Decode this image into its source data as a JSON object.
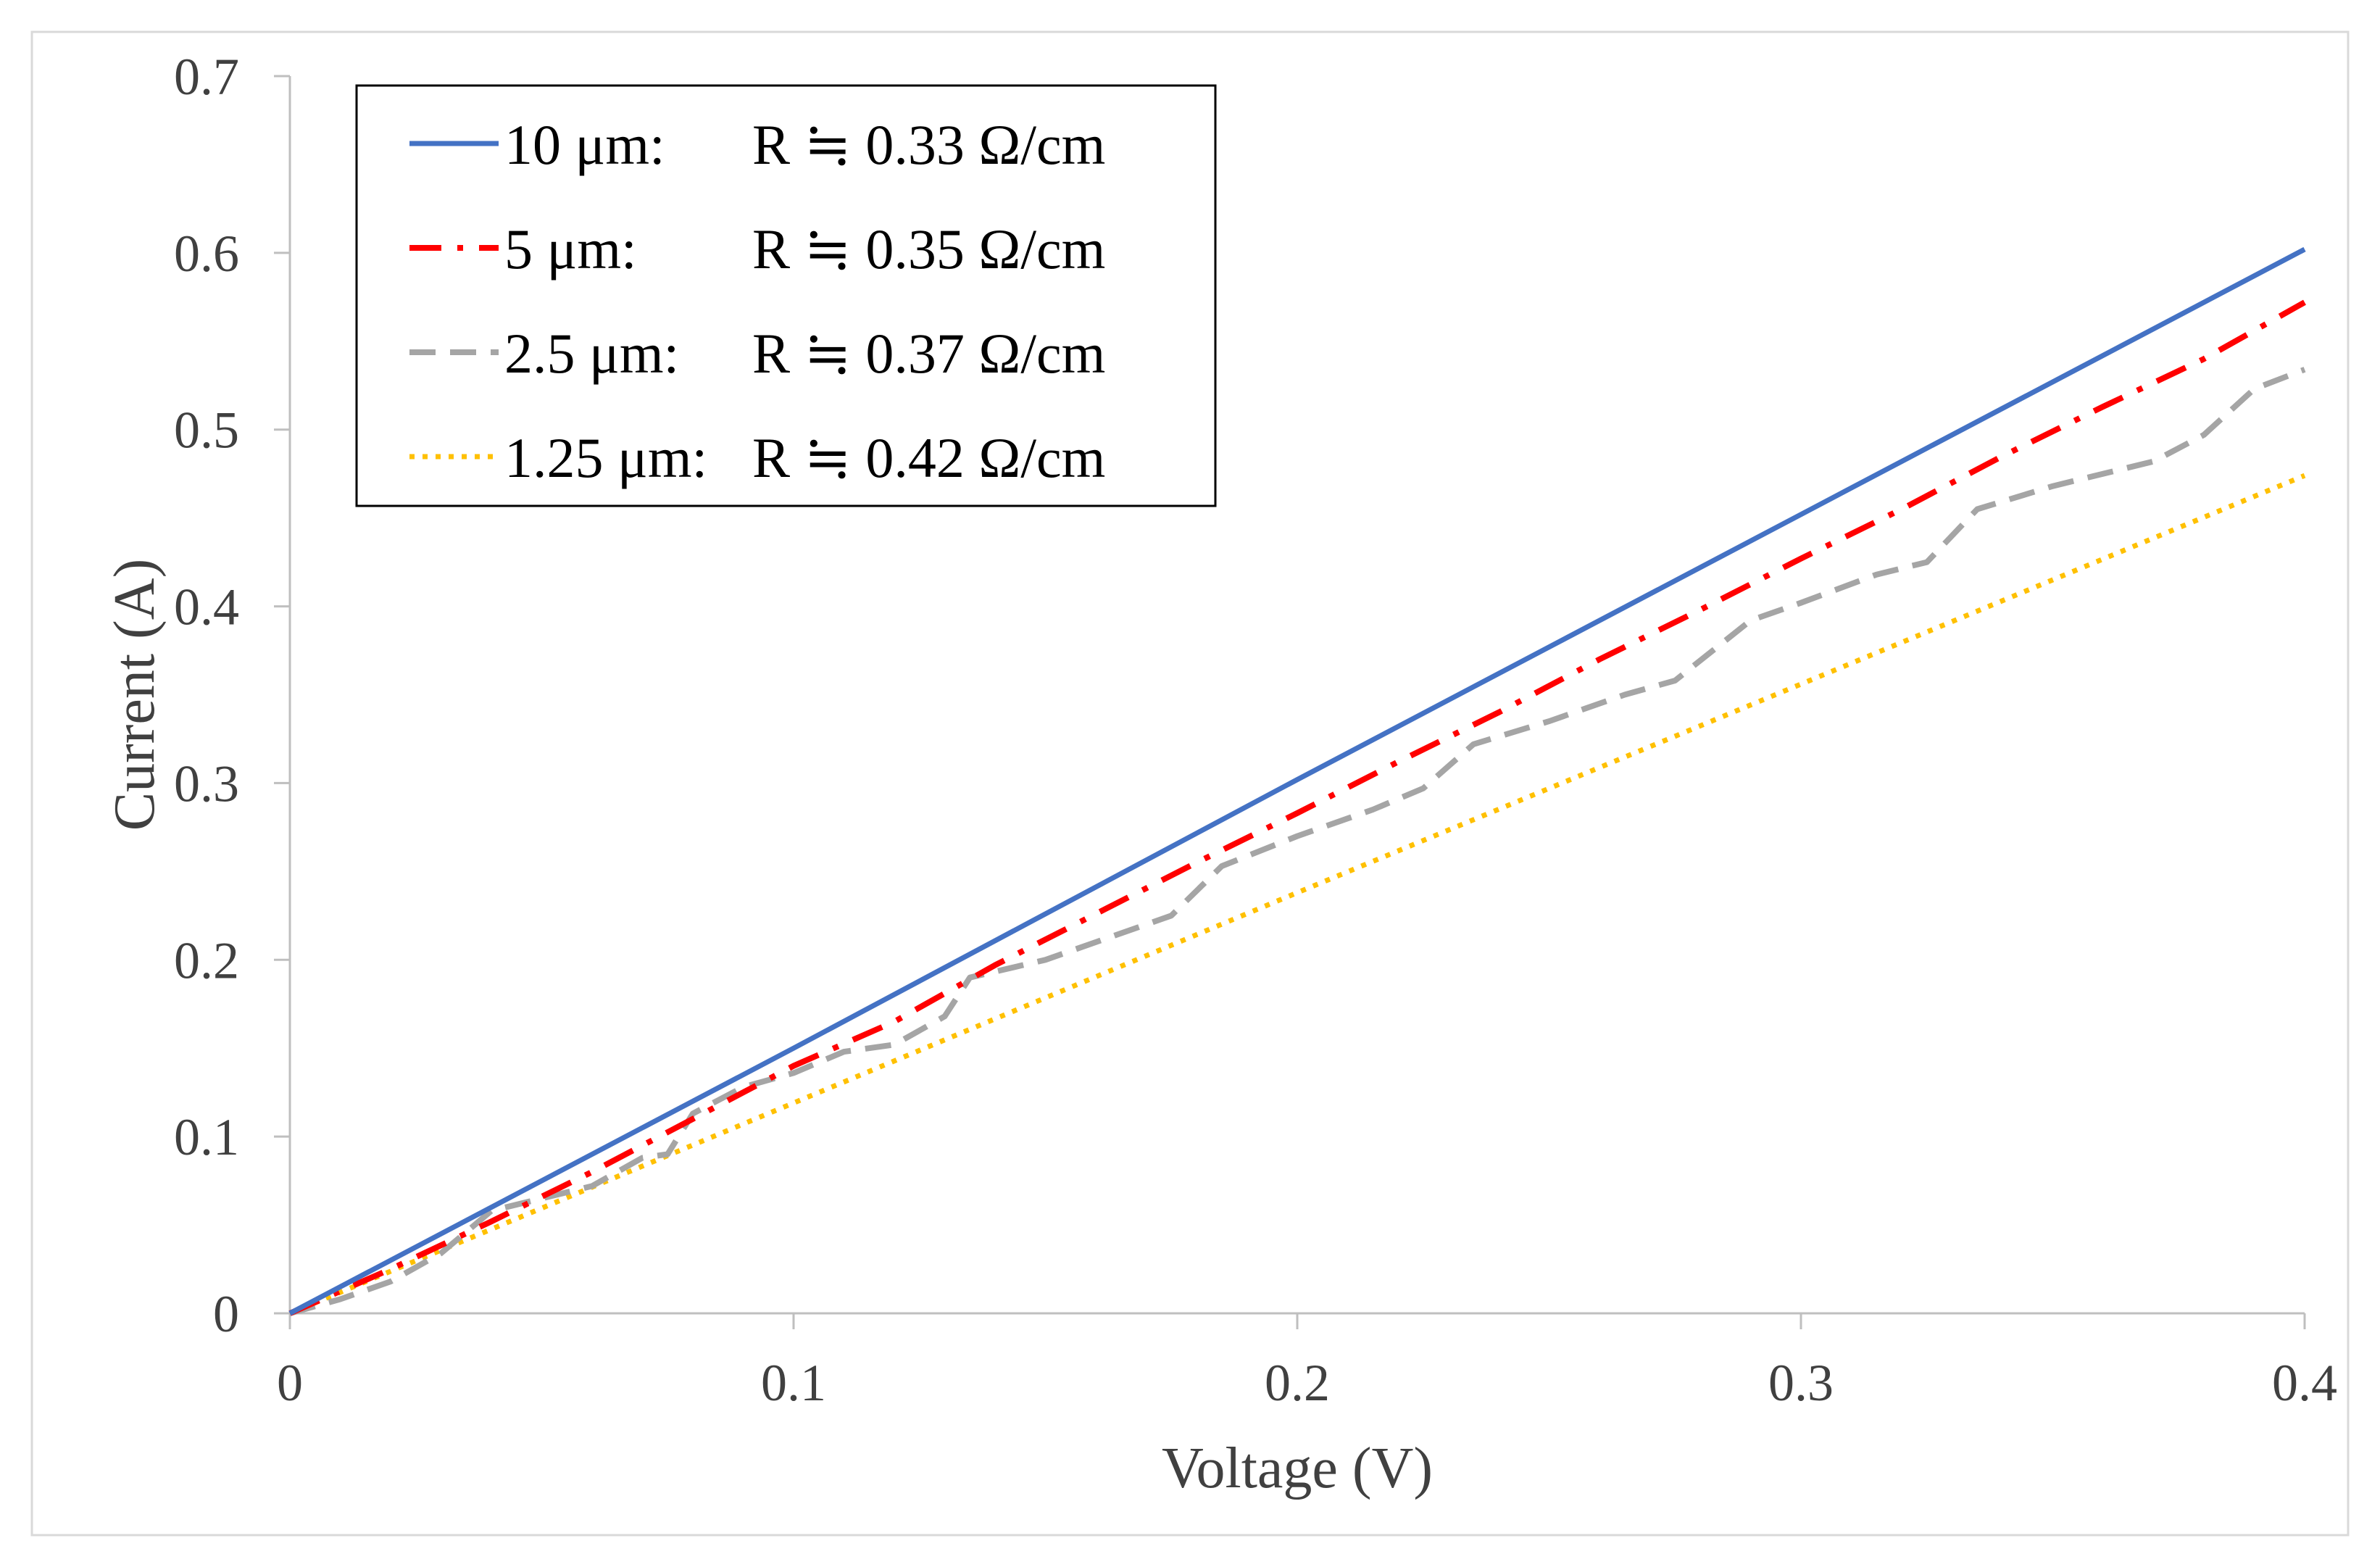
{
  "chart_data": {
    "type": "line",
    "title": "",
    "xlabel": "Voltage (V)",
    "ylabel": "Current (A)",
    "xlim": [
      0,
      0.4
    ],
    "ylim": [
      0,
      0.7
    ],
    "x_ticks": [
      "0",
      "0.1",
      "0.2",
      "0.3",
      "0.4"
    ],
    "y_ticks": [
      "0",
      "0.1",
      "0.2",
      "0.3",
      "0.4",
      "0.5",
      "0.6",
      "0.7"
    ],
    "grid": false,
    "legend_position": "top-left",
    "series": [
      {
        "name": "10 μm:",
        "resistance": "R ≒ 0.33 Ω/cm",
        "color": "#4472C4",
        "style": "solid",
        "points": [
          [
            0,
            0
          ],
          [
            0.1,
            0.15
          ],
          [
            0.2,
            0.302
          ],
          [
            0.3,
            0.452
          ],
          [
            0.4,
            0.602
          ]
        ]
      },
      {
        "name": "5 μm:",
        "resistance": "R ≒ 0.35 Ω/cm",
        "color": "#FF0000",
        "style": "dashdot",
        "points": [
          [
            0,
            0
          ],
          [
            0.02,
            0.025
          ],
          [
            0.04,
            0.052
          ],
          [
            0.06,
            0.08
          ],
          [
            0.08,
            0.11
          ],
          [
            0.1,
            0.14
          ],
          [
            0.12,
            0.165
          ],
          [
            0.14,
            0.197
          ],
          [
            0.16,
            0.226
          ],
          [
            0.18,
            0.255
          ],
          [
            0.2,
            0.283
          ],
          [
            0.22,
            0.312
          ],
          [
            0.24,
            0.34
          ],
          [
            0.26,
            0.37
          ],
          [
            0.28,
            0.398
          ],
          [
            0.3,
            0.427
          ],
          [
            0.32,
            0.455
          ],
          [
            0.34,
            0.485
          ],
          [
            0.36,
            0.513
          ],
          [
            0.38,
            0.54
          ],
          [
            0.4,
            0.572
          ]
        ]
      },
      {
        "name": "2.5 μm:",
        "resistance": "R ≒ 0.37 Ω/cm",
        "color": "#A5A5A5",
        "style": "dashed",
        "points": [
          [
            0,
            0
          ],
          [
            0.01,
            0.008
          ],
          [
            0.02,
            0.018
          ],
          [
            0.03,
            0.034
          ],
          [
            0.04,
            0.058
          ],
          [
            0.05,
            0.065
          ],
          [
            0.06,
            0.072
          ],
          [
            0.07,
            0.088
          ],
          [
            0.075,
            0.09
          ],
          [
            0.08,
            0.113
          ],
          [
            0.09,
            0.128
          ],
          [
            0.1,
            0.136
          ],
          [
            0.11,
            0.148
          ],
          [
            0.12,
            0.152
          ],
          [
            0.13,
            0.168
          ],
          [
            0.135,
            0.19
          ],
          [
            0.15,
            0.2
          ],
          [
            0.16,
            0.21
          ],
          [
            0.175,
            0.225
          ],
          [
            0.185,
            0.253
          ],
          [
            0.2,
            0.27
          ],
          [
            0.215,
            0.285
          ],
          [
            0.225,
            0.297
          ],
          [
            0.235,
            0.322
          ],
          [
            0.25,
            0.335
          ],
          [
            0.265,
            0.35
          ],
          [
            0.275,
            0.358
          ],
          [
            0.29,
            0.392
          ],
          [
            0.3,
            0.402
          ],
          [
            0.315,
            0.418
          ],
          [
            0.325,
            0.425
          ],
          [
            0.335,
            0.455
          ],
          [
            0.35,
            0.468
          ],
          [
            0.37,
            0.482
          ],
          [
            0.38,
            0.497
          ],
          [
            0.39,
            0.523
          ],
          [
            0.4,
            0.534
          ]
        ]
      },
      {
        "name": "1.25 μm:",
        "resistance": "R ≒ 0.42 Ω/cm",
        "color": "#FFC000",
        "style": "dotted",
        "points": [
          [
            0,
            0
          ],
          [
            0.1,
            0.119
          ],
          [
            0.2,
            0.238
          ],
          [
            0.3,
            0.356
          ],
          [
            0.4,
            0.474
          ]
        ]
      }
    ]
  }
}
